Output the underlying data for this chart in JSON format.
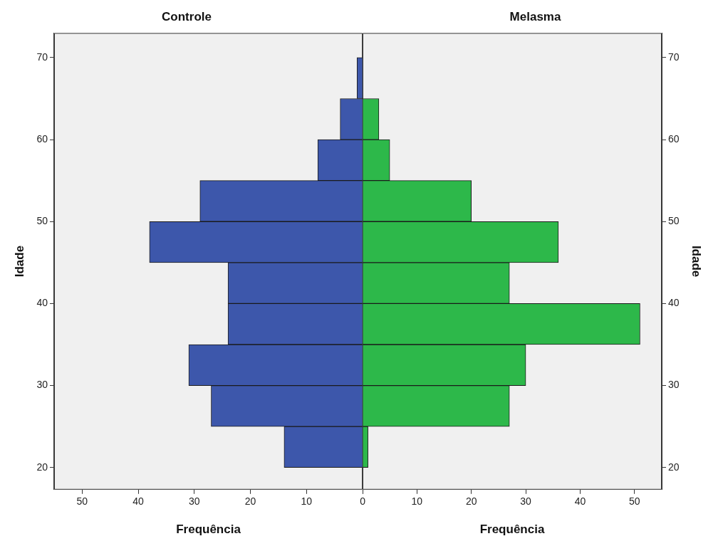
{
  "chart_data": [
    {
      "type": "histogram",
      "orientation": "horizontal",
      "title": "Controle",
      "xlabel": "Frequência",
      "ylabel": "Idade",
      "bins": [
        20,
        25,
        30,
        35,
        40,
        45,
        50,
        55,
        60,
        65,
        70
      ],
      "values": [
        14,
        27,
        31,
        24,
        24,
        38,
        29,
        8,
        4,
        1
      ],
      "color": "#3d57ab",
      "xlim": [
        55,
        0
      ],
      "xticks": [
        50,
        40,
        30,
        20,
        10,
        0
      ],
      "ylim": [
        17.3,
        73
      ],
      "yticks": [
        20,
        30,
        40,
        50,
        60,
        70
      ]
    },
    {
      "type": "histogram",
      "orientation": "horizontal",
      "title": "Melasma",
      "xlabel": "Frequência",
      "ylabel": "Idade",
      "bins": [
        20,
        25,
        30,
        35,
        40,
        45,
        50,
        55,
        60,
        65,
        70
      ],
      "values": [
        1,
        27,
        30,
        51,
        27,
        36,
        20,
        5,
        3,
        0
      ],
      "color": "#2db84a",
      "xlim": [
        0,
        55
      ],
      "xticks": [
        {
          "value": 0,
          "label": null
        },
        10,
        20,
        30,
        40,
        50
      ],
      "ylim": [
        17.3,
        73
      ],
      "yticks": [
        20,
        30,
        40,
        50,
        60,
        70
      ]
    }
  ]
}
